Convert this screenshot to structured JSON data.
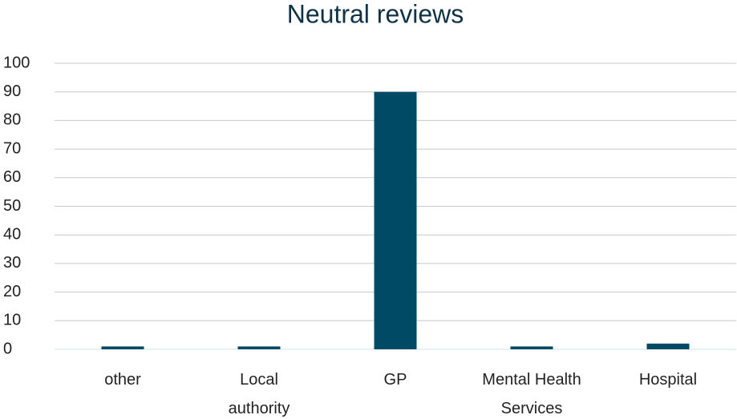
{
  "chart_data": {
    "type": "bar",
    "title": "Neutral reviews",
    "categories": [
      "other",
      "Local authority",
      "GP",
      "Mental Health Services",
      "Hospital"
    ],
    "values": [
      1,
      1,
      90,
      1,
      2
    ],
    "color": "#004a66",
    "ylim": [
      0,
      100
    ],
    "yticks": [
      0,
      10,
      20,
      30,
      40,
      50,
      60,
      70,
      80,
      90,
      100
    ],
    "grid": true
  }
}
